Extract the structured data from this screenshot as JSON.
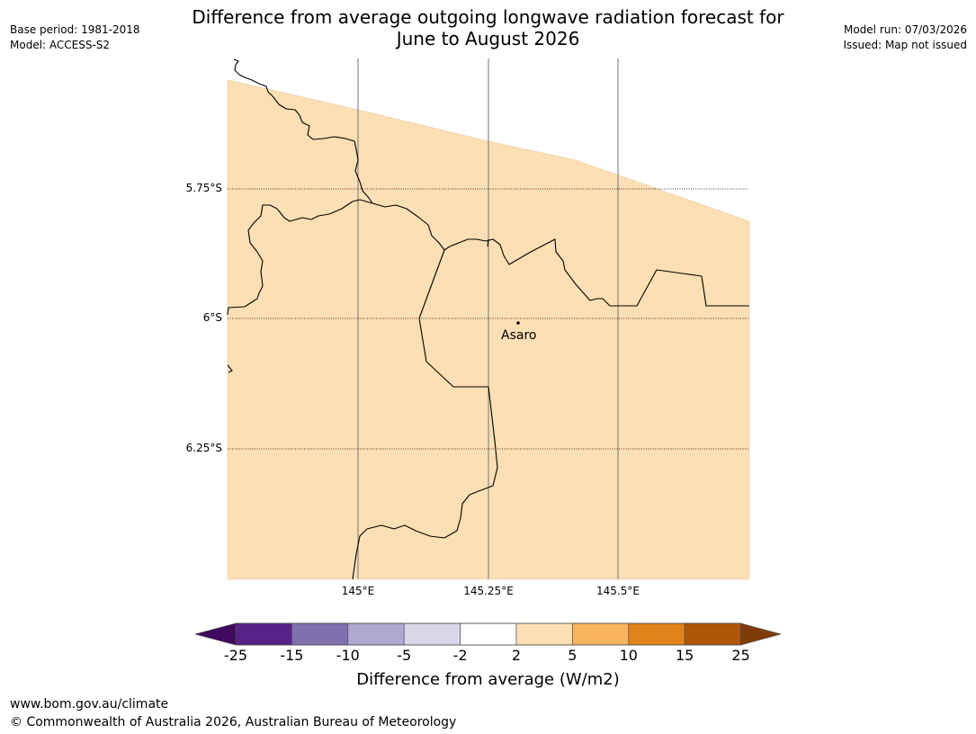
{
  "header": {
    "title_line1": "Difference from average outgoing longwave radiation forecast for",
    "title_line2": "June to August 2026",
    "base_period": "Base period: 1981-2018",
    "model": "Model: ACCESS-S2",
    "model_run": "Model run: 07/03/2026",
    "issued": "Issued: Map not issued"
  },
  "map": {
    "lat_labels": [
      "5.75°S",
      "6°S",
      "6.25°S"
    ],
    "lon_labels": [
      "145°E",
      "145.25°E",
      "145.5°E"
    ],
    "place": {
      "name": "Asaro"
    },
    "fill_color": "#fcdfb4",
    "border_color": "#000000",
    "grid_color": "#888888"
  },
  "colorbar": {
    "title": "Difference from average (W/m2)",
    "ticks": [
      "-25",
      "-15",
      "-10",
      "-5",
      "-2",
      "2",
      "5",
      "10",
      "15",
      "25"
    ],
    "colors": [
      "#3f0a5f",
      "#57228a",
      "#8070b0",
      "#b1a8d2",
      "#d8d8ea",
      "#ffffff",
      "#fcdfb4",
      "#f9b55e",
      "#e1821a",
      "#b05707",
      "#7f3b08"
    ]
  },
  "footer": {
    "url": "www.bom.gov.au/climate",
    "copyright": "© Commonwealth of Australia 2026, Australian Bureau of Meteorology"
  }
}
